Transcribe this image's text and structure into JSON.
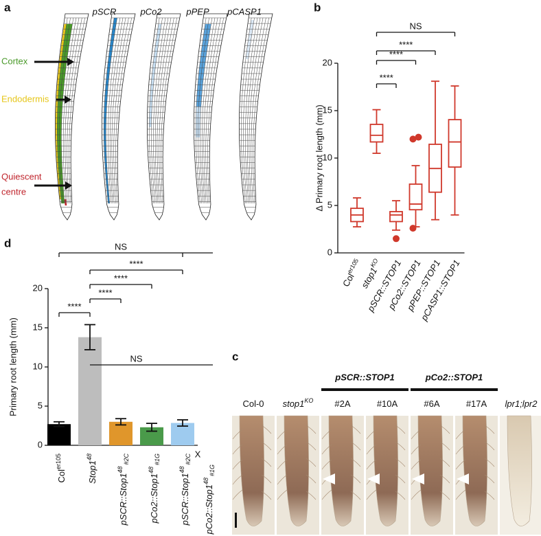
{
  "panel_a": {
    "label": "a",
    "promoters": [
      "pSCR",
      "pCo2",
      "pPEP",
      "pCASP1"
    ],
    "tissues": [
      {
        "lines": [
          "Cortex"
        ],
        "color": "#4a9a2a"
      },
      {
        "lines": [
          "Endodermis"
        ],
        "color": "#e6c619"
      },
      {
        "lines": [
          "Quiescent",
          "centre"
        ],
        "color": "#c0242c"
      }
    ]
  },
  "chart_data": [
    {
      "panel": "b",
      "type": "box",
      "ylabel": "Δ Primary root length (mm)",
      "color": "#d0382b",
      "categories": [
        "Col",
        "stop1",
        "pSCR::STOP1",
        "pCo2::STOP1",
        "pPEP::STOP1",
        "pCASP1::STOP1"
      ],
      "category_superscripts": [
        "er105",
        "KO",
        null,
        null,
        null,
        null
      ],
      "boxes": [
        {
          "whislo": 2.75,
          "q1": 3.3,
          "med": 4.0,
          "q3": 4.7,
          "whishi": 5.8,
          "fliers": []
        },
        {
          "whislo": 10.5,
          "q1": 11.7,
          "med": 12.4,
          "q3": 13.55,
          "whishi": 15.1,
          "fliers": []
        },
        {
          "whislo": 2.4,
          "q1": 3.3,
          "med": 4.0,
          "q3": 4.35,
          "whishi": 5.5,
          "fliers": [
            1.5
          ]
        },
        {
          "whislo": 2.75,
          "q1": 4.55,
          "med": 5.15,
          "q3": 7.25,
          "whishi": 9.2,
          "fliers": [
            12.0,
            12.2,
            2.6
          ]
        },
        {
          "whislo": 3.5,
          "q1": 6.4,
          "med": 8.9,
          "q3": 11.45,
          "whishi": 18.1,
          "fliers": []
        },
        {
          "whislo": 4.0,
          "q1": 9.05,
          "med": 11.7,
          "q3": 14.05,
          "whishi": 17.6,
          "fliers": []
        }
      ],
      "ylim": [
        0,
        20
      ],
      "yticks": [
        0,
        5,
        10,
        15,
        20
      ],
      "comparisons": [
        {
          "between": [
            1,
            5
          ],
          "label": "NS"
        },
        {
          "between": [
            1,
            4
          ],
          "label": "****"
        },
        {
          "between": [
            1,
            3
          ],
          "label": "****"
        },
        {
          "between": [
            1,
            2
          ],
          "label": "****"
        }
      ]
    },
    {
      "panel": "d",
      "type": "bar",
      "ylabel": "Primary root length (mm)",
      "categories": [
        "Col",
        "Stop1",
        "pSCR::Stop1",
        "pCo2::Stop1",
        "pSCR::Stop1"
      ],
      "category_superscripts": [
        "er105",
        "48",
        "48",
        "48",
        "48"
      ],
      "category_subscripts": [
        null,
        null,
        "#2C",
        "#1G",
        "#2C"
      ],
      "cross_label": "X",
      "cross_partner": {
        "text": "pCo2::Stop1",
        "superscript": "48",
        "subscript": "#1G"
      },
      "values": [
        2.7,
        13.8,
        3.0,
        2.3,
        2.85
      ],
      "errors": [
        0.3,
        1.6,
        0.4,
        0.5,
        0.4
      ],
      "colors": [
        "#000000",
        "#bdbdbd",
        "#e0962b",
        "#4a9a4a",
        "#9ecbef"
      ],
      "ylim": [
        0,
        20
      ],
      "yticks": [
        0,
        5,
        10,
        15,
        20
      ],
      "comparisons": [
        {
          "between": [
            0,
            4
          ],
          "label": "NS"
        },
        {
          "between": [
            1,
            4
          ],
          "label": "****"
        },
        {
          "between": [
            1,
            3
          ],
          "label": "****"
        },
        {
          "between": [
            1,
            2
          ],
          "label": "****"
        },
        {
          "between": [
            0,
            1
          ],
          "label": "****"
        },
        {
          "between": [
            1,
            4
          ],
          "label": "NS",
          "style": "line"
        }
      ]
    }
  ],
  "panel_c": {
    "label": "c",
    "samples_before": [
      {
        "text": "Col-0"
      },
      {
        "text": "stop1",
        "superscript": "KO"
      }
    ],
    "groups": [
      {
        "name": "pSCR::STOP1",
        "lines": [
          "#2A",
          "#10A"
        ]
      },
      {
        "name": "pCo2::STOP1",
        "lines": [
          "#6A",
          "#17A"
        ]
      }
    ],
    "samples_after": [
      {
        "text": "lpr1;lpr2"
      }
    ]
  }
}
